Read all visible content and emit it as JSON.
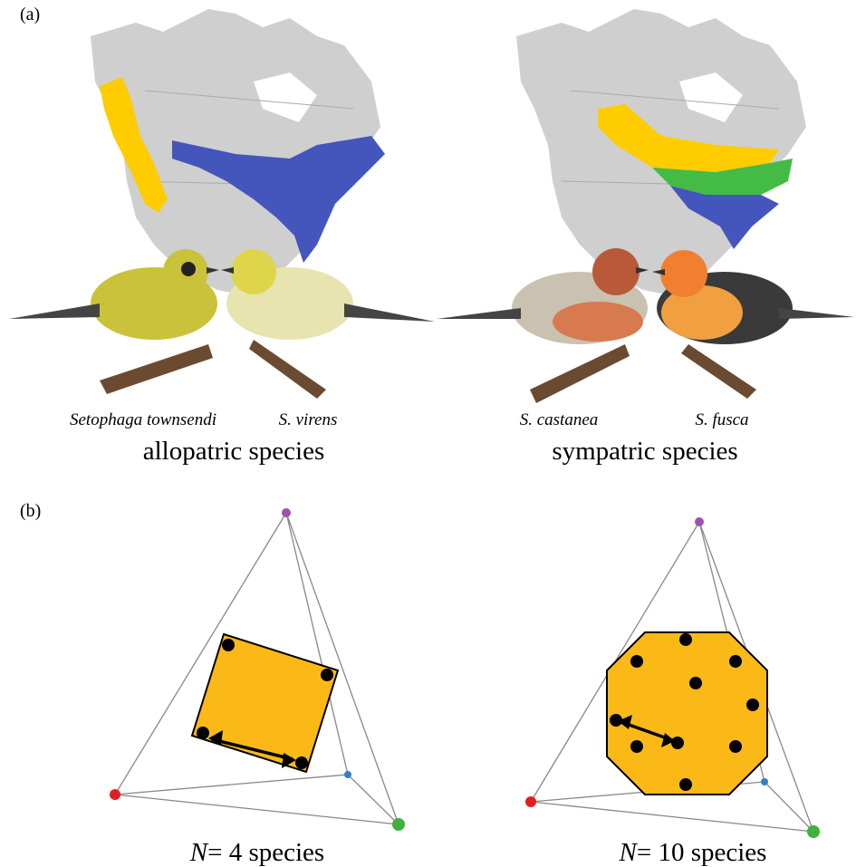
{
  "panel_a": {
    "label": "(a)",
    "left": {
      "species": [
        "Setophaga townsendi",
        "S. virens"
      ],
      "caption": "allopatric species"
    },
    "right": {
      "species": [
        "S. castanea",
        "S. fusca"
      ],
      "caption": "sympatric species"
    }
  },
  "panel_b": {
    "label": "(b)",
    "left": {
      "symbol": "N",
      "caption": "= 4 species"
    },
    "right": {
      "symbol": "N",
      "caption": "= 10 species"
    }
  }
}
